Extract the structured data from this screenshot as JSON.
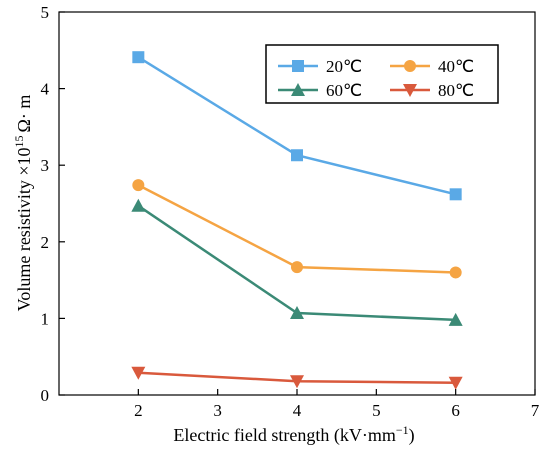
{
  "chart_data": {
    "type": "line",
    "title": "",
    "xlabel": "Electric field strength (kV·mm",
    "xlabel_sup": "−1",
    "xlabel_tail": ")",
    "ylabel": "Volume resistivity ×10",
    "ylabel_sup": "15",
    "ylabel_tail": "Ω· m",
    "xlim": [
      1,
      7
    ],
    "ylim": [
      0,
      5
    ],
    "xticks": [
      2,
      3,
      4,
      5,
      6,
      7
    ],
    "yticks": [
      0,
      1,
      2,
      3,
      4,
      5
    ],
    "grid": false,
    "legend_position": "top-right",
    "x": [
      2,
      4,
      6
    ],
    "series": [
      {
        "name": "20℃",
        "values": [
          4.41,
          3.13,
          2.62
        ],
        "color": "#5aa9e6",
        "marker": "square"
      },
      {
        "name": "40℃",
        "values": [
          2.74,
          1.67,
          1.6
        ],
        "color": "#f5a443",
        "marker": "circle"
      },
      {
        "name": "60℃",
        "values": [
          2.47,
          1.07,
          0.98
        ],
        "color": "#3b8a76",
        "marker": "triangle-up"
      },
      {
        "name": "80℃",
        "values": [
          0.29,
          0.18,
          0.16
        ],
        "color": "#d9593c",
        "marker": "triangle-down"
      }
    ]
  }
}
